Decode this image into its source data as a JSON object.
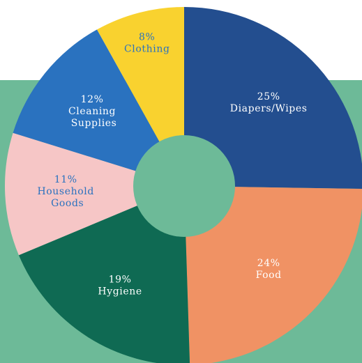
{
  "chart_data": {
    "type": "donut",
    "categories": [
      "Diapers/Wipes",
      "Food",
      "Hygiene",
      "Household Goods",
      "Cleaning Supplies",
      "Clothing"
    ],
    "values": [
      25,
      24,
      19,
      11,
      12,
      8
    ],
    "value_labels": [
      "25%",
      "24%",
      "19%",
      "11%",
      "12%",
      "8%"
    ],
    "colors": [
      "#234e8f",
      "#f09264",
      "#0f6a53",
      "#f6c6c6",
      "#2a72bf",
      "#f9d22f"
    ],
    "label_colors": [
      "#ffffff",
      "#ffffff",
      "#ffffff",
      "#2a72bf",
      "#ffffff",
      "#2a72bf"
    ],
    "background_color": "#6dba98"
  }
}
